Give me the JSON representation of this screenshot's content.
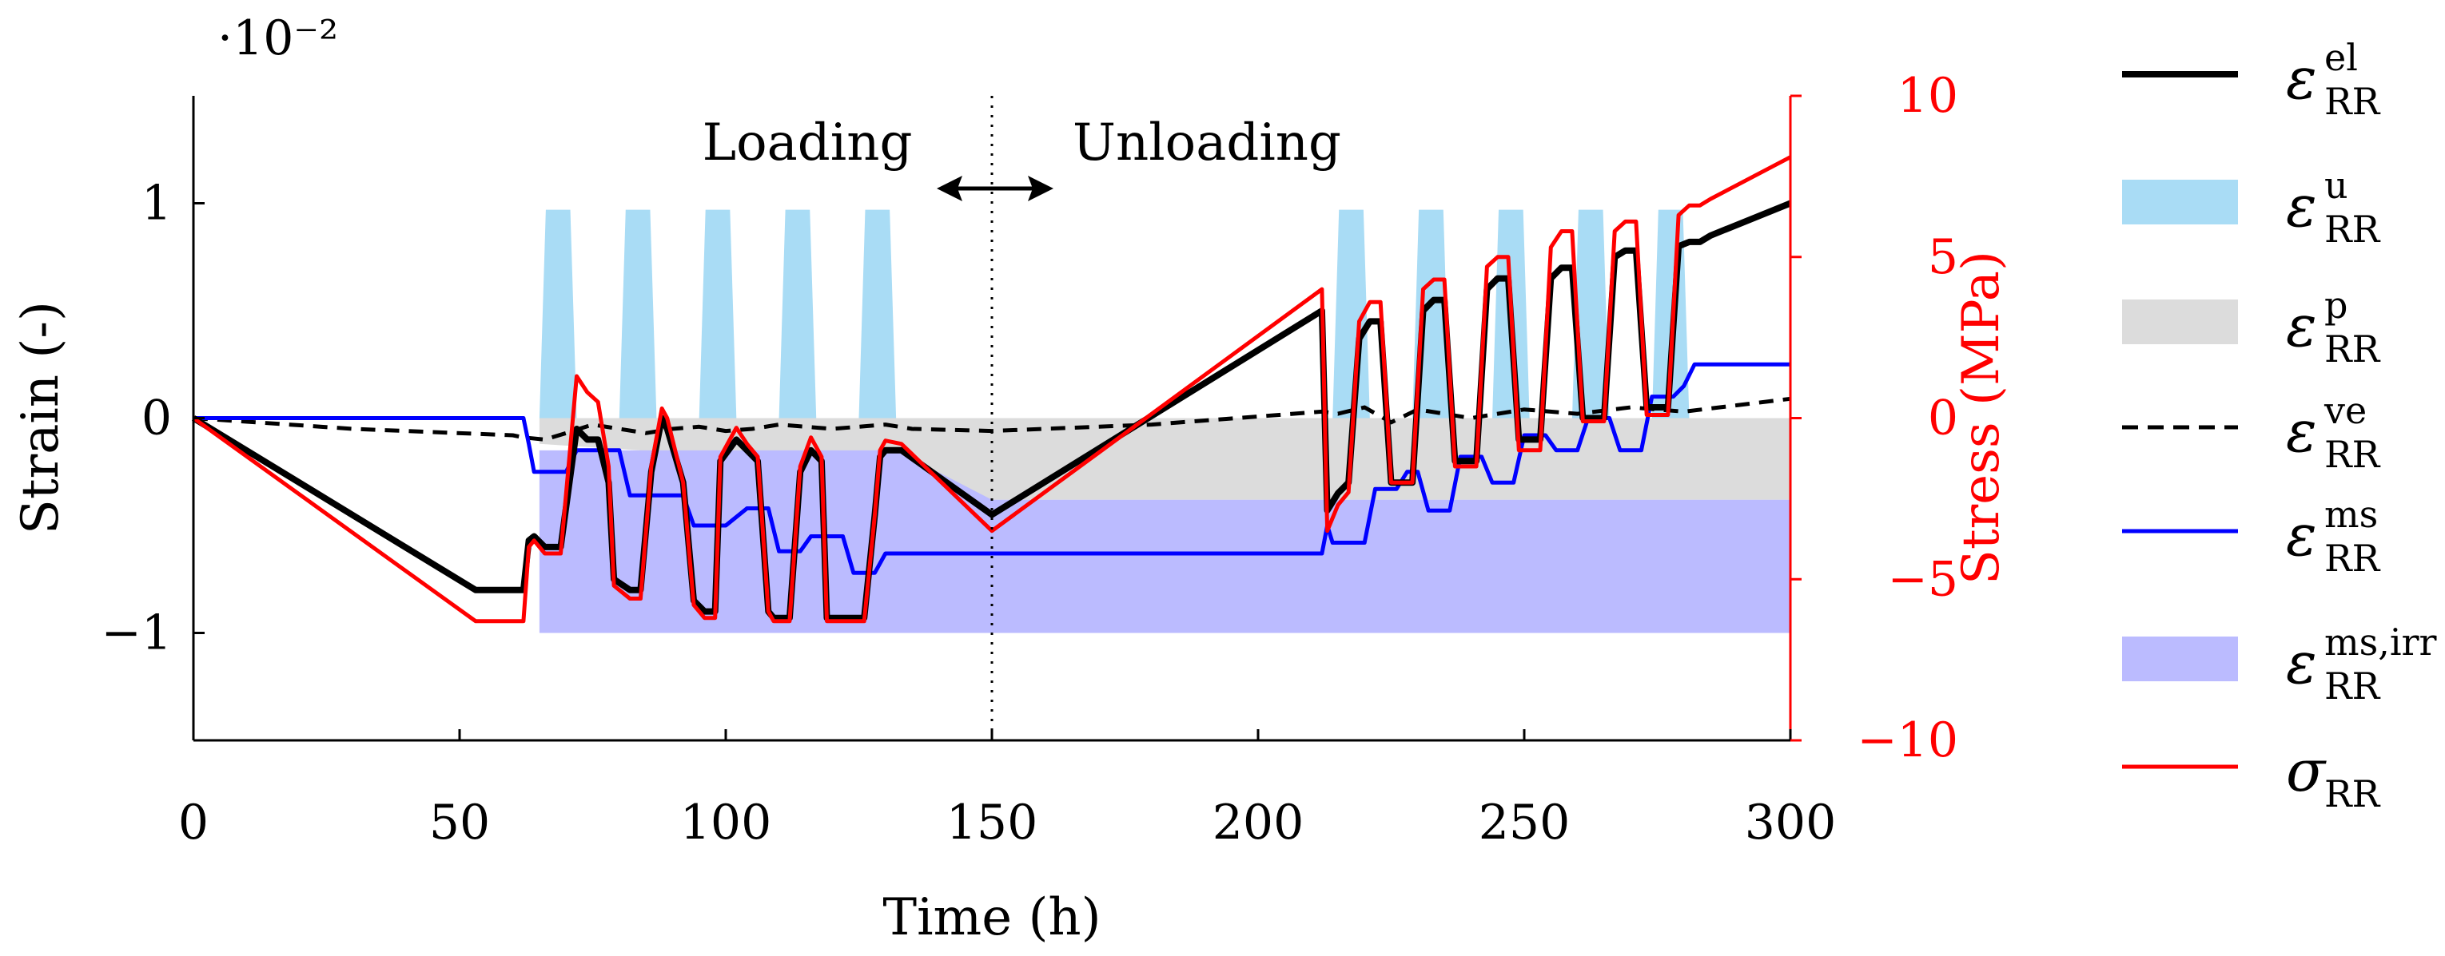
{
  "chart_data": {
    "type": "line",
    "xlabel": "Time (h)",
    "ylabel": "Strain (-)",
    "y2label": "Stress (MPa)",
    "yscale_note": "·10⁻²",
    "xlim": [
      0,
      300
    ],
    "ylim": [
      -1.5,
      1.5
    ],
    "y2lim": [
      -10,
      10
    ],
    "xticks": [
      "0",
      "50",
      "100",
      "150",
      "200",
      "250",
      "300"
    ],
    "xtick_values": [
      0,
      50,
      100,
      150,
      200,
      250,
      300
    ],
    "yticks": [
      "−1",
      "0",
      "1"
    ],
    "ytick_values": [
      -1,
      0,
      1
    ],
    "y2ticks": [
      "−10",
      "−5",
      "0",
      "5",
      "10"
    ],
    "y2tick_values": [
      -10,
      -5,
      0,
      5,
      10
    ],
    "annotations": {
      "loading": "Loading",
      "unloading": "Unloading",
      "divider_x": 150
    },
    "colors": {
      "el": "#000000",
      "u": "#a9dcf5",
      "p": "#dcdcdc",
      "ve": "#000000",
      "ms": "#0000ff",
      "ms_irr": "#bbbbff",
      "sigma": "#ff0000",
      "right_axis": "#ff0000"
    },
    "legend_labels": {
      "el": {
        "base": "ε",
        "sub": "RR",
        "sup": "el"
      },
      "u": {
        "base": "ε",
        "sub": "RR",
        "sup": "u"
      },
      "p": {
        "base": "ε",
        "sub": "RR",
        "sup": "p"
      },
      "ve": {
        "base": "ε",
        "sub": "RR",
        "sup": "ve"
      },
      "ms": {
        "base": "ε",
        "sub": "RR",
        "sup": "ms"
      },
      "ms_irr": {
        "base": "ε",
        "sub": "RR",
        "sup": "ms,irr"
      },
      "sigma": {
        "base": "σ",
        "sub": "RR",
        "sup": ""
      }
    },
    "series": [
      {
        "key": "el",
        "name": "εRR^el",
        "style": "line",
        "axis": "left",
        "x": [
          0,
          53,
          62,
          63,
          64,
          66,
          68,
          69,
          72,
          74,
          76,
          78,
          79,
          82,
          84,
          86,
          88,
          89,
          92,
          94,
          96,
          98,
          99,
          102,
          104,
          106,
          108,
          109,
          112,
          114,
          116,
          118,
          119,
          122,
          124,
          126,
          128,
          129,
          130,
          133,
          150,
          212,
          213,
          215,
          217,
          219,
          221,
          223,
          225,
          227,
          229,
          231,
          233,
          235,
          237,
          239,
          241,
          243,
          245,
          247,
          249,
          251,
          253,
          255,
          257,
          259,
          261,
          263,
          265,
          267,
          269,
          271,
          273,
          275,
          277,
          279,
          281,
          283,
          285,
          300
        ],
        "y": [
          0,
          -0.8,
          -0.8,
          -0.57,
          -0.55,
          -0.6,
          -0.6,
          -0.6,
          -0.05,
          -0.1,
          -0.1,
          -0.3,
          -0.75,
          -0.8,
          -0.8,
          -0.25,
          0,
          -0.05,
          -0.3,
          -0.85,
          -0.9,
          -0.9,
          -0.2,
          -0.1,
          -0.15,
          -0.2,
          -0.9,
          -0.93,
          -0.93,
          -0.25,
          -0.15,
          -0.2,
          -0.93,
          -0.93,
          -0.93,
          -0.93,
          -0.45,
          -0.18,
          -0.15,
          -0.15,
          -0.45,
          0.5,
          -0.43,
          -0.35,
          -0.3,
          0.37,
          0.45,
          0.45,
          -0.3,
          -0.3,
          -0.3,
          0.5,
          0.55,
          0.55,
          -0.2,
          -0.2,
          -0.2,
          0.6,
          0.65,
          0.65,
          -0.1,
          -0.1,
          -0.1,
          0.65,
          0.7,
          0.7,
          0,
          0,
          0,
          0.75,
          0.78,
          0.78,
          0.05,
          0.05,
          0.05,
          0.8,
          0.82,
          0.82,
          0.85,
          1.0
        ]
      },
      {
        "key": "sigma",
        "name": "σRR",
        "style": "line",
        "axis": "right",
        "x": [
          0,
          53,
          62,
          63,
          64,
          66,
          68,
          69,
          72,
          74,
          76,
          78,
          79,
          82,
          84,
          86,
          88,
          89,
          92,
          94,
          96,
          98,
          99,
          102,
          104,
          106,
          108,
          109,
          112,
          114,
          116,
          118,
          119,
          122,
          124,
          126,
          128,
          129,
          130,
          133,
          150,
          212,
          213,
          215,
          217,
          219,
          221,
          223,
          225,
          227,
          229,
          231,
          233,
          235,
          237,
          239,
          241,
          243,
          245,
          247,
          249,
          251,
          253,
          255,
          257,
          259,
          261,
          263,
          265,
          267,
          269,
          271,
          273,
          275,
          277,
          279,
          281,
          283,
          285,
          300
        ],
        "y": [
          0,
          -6.3,
          -6.3,
          -4.0,
          -3.8,
          -4.2,
          -4.2,
          -4.2,
          1.3,
          0.8,
          0.5,
          -1.5,
          -5.2,
          -5.6,
          -5.6,
          -1.5,
          0.3,
          0,
          -2,
          -5.8,
          -6.2,
          -6.2,
          -1.2,
          -0.3,
          -0.8,
          -1.2,
          -6.0,
          -6.3,
          -6.3,
          -1.5,
          -0.6,
          -1.2,
          -6.3,
          -6.3,
          -6.3,
          -6.3,
          -3.0,
          -1.0,
          -0.7,
          -0.8,
          -3.5,
          4.0,
          -3.5,
          -2.7,
          -2.3,
          3.0,
          3.6,
          3.6,
          -2.0,
          -2.0,
          -2.0,
          4.0,
          4.3,
          4.3,
          -1.5,
          -1.5,
          -1.5,
          4.7,
          5.0,
          5.0,
          -1.0,
          -1.0,
          -1.0,
          5.3,
          5.8,
          5.8,
          -0.1,
          -0.1,
          -0.1,
          5.8,
          6.1,
          6.1,
          0.1,
          0.1,
          0.1,
          6.3,
          6.6,
          6.6,
          6.8,
          8.1
        ]
      },
      {
        "key": "ve",
        "name": "εRR^ve",
        "style": "dashed",
        "axis": "left",
        "x": [
          0,
          30,
          60,
          62,
          66,
          70,
          75,
          80,
          85,
          90,
          95,
          100,
          105,
          110,
          115,
          120,
          125,
          130,
          135,
          150,
          180,
          212,
          215,
          220,
          225,
          230,
          240,
          250,
          260,
          270,
          280,
          290,
          300
        ],
        "y": [
          0,
          -0.05,
          -0.08,
          -0.09,
          -0.1,
          -0.07,
          -0.03,
          -0.05,
          -0.07,
          -0.05,
          -0.04,
          -0.06,
          -0.05,
          -0.03,
          -0.04,
          -0.05,
          -0.04,
          -0.03,
          -0.05,
          -0.06,
          -0.03,
          0.03,
          0.02,
          0.05,
          -0.02,
          0.04,
          0.0,
          0.04,
          0.02,
          0.05,
          0.03,
          0.06,
          0.09
        ]
      },
      {
        "key": "ms",
        "name": "εRR^ms",
        "style": "line",
        "axis": "left",
        "x": [
          0,
          62,
          63,
          64,
          66,
          70,
          72,
          74,
          80,
          82,
          84,
          86,
          89,
          92,
          94,
          96,
          100,
          104,
          106,
          108,
          110,
          112,
          114,
          116,
          120,
          122,
          124,
          126,
          128,
          130,
          132,
          150,
          212,
          213,
          214,
          215,
          218,
          220,
          222,
          224,
          226,
          228,
          230,
          232,
          234,
          236,
          238,
          240,
          242,
          244,
          246,
          248,
          250,
          252,
          254,
          256,
          258,
          260,
          262,
          264,
          266,
          268,
          270,
          272,
          274,
          276,
          278,
          280,
          282,
          284,
          286,
          290,
          300
        ],
        "y": [
          0,
          0,
          -0.12,
          -0.25,
          -0.25,
          -0.25,
          -0.15,
          -0.15,
          -0.15,
          -0.36,
          -0.36,
          -0.36,
          -0.36,
          -0.36,
          -0.5,
          -0.5,
          -0.5,
          -0.42,
          -0.42,
          -0.42,
          -0.62,
          -0.62,
          -0.62,
          -0.55,
          -0.55,
          -0.55,
          -0.72,
          -0.72,
          -0.72,
          -0.63,
          -0.63,
          -0.63,
          -0.63,
          -0.5,
          -0.58,
          -0.58,
          -0.58,
          -0.58,
          -0.33,
          -0.33,
          -0.33,
          -0.25,
          -0.25,
          -0.43,
          -0.43,
          -0.43,
          -0.18,
          -0.18,
          -0.18,
          -0.3,
          -0.3,
          -0.3,
          -0.08,
          -0.08,
          -0.08,
          -0.15,
          -0.15,
          -0.15,
          0.0,
          0.0,
          0.0,
          -0.15,
          -0.15,
          -0.15,
          0.1,
          0.1,
          0.1,
          0.15,
          0.25,
          0.25,
          0.25,
          0.25,
          0.25
        ]
      },
      {
        "key": "u",
        "name": "εRR^u",
        "style": "fill",
        "axis": "left",
        "pulses": [
          {
            "start": 65,
            "end": 72,
            "lo": 0,
            "hi": 0.97
          },
          {
            "start": 80,
            "end": 87,
            "lo": 0,
            "hi": 0.97
          },
          {
            "start": 95,
            "end": 102,
            "lo": 0,
            "hi": 0.97
          },
          {
            "start": 110,
            "end": 117,
            "lo": 0,
            "hi": 0.97
          },
          {
            "start": 125,
            "end": 132,
            "lo": 0,
            "hi": 0.97
          },
          {
            "start": 214,
            "end": 221,
            "lo": 0,
            "hi": 0.97
          },
          {
            "start": 229,
            "end": 236,
            "lo": 0,
            "hi": 0.97
          },
          {
            "start": 244,
            "end": 251,
            "lo": 0,
            "hi": 0.97
          },
          {
            "start": 259,
            "end": 266,
            "lo": 0,
            "hi": 0.97
          },
          {
            "start": 274,
            "end": 281,
            "lo": 0,
            "hi": 0.97
          }
        ]
      },
      {
        "key": "p",
        "name": "εRR^p",
        "style": "fill",
        "axis": "left",
        "upper": 0,
        "x": [
          65,
          90,
          110,
          130,
          150,
          300
        ],
        "lower": [
          -0.12,
          -0.16,
          -0.2,
          -0.3,
          -0.38,
          -0.38
        ]
      },
      {
        "key": "ms_irr",
        "name": "εRR^ms,irr",
        "style": "fill",
        "axis": "left",
        "x": [
          65,
          132,
          150,
          300
        ],
        "upper": [
          -0.15,
          -0.15,
          -0.38,
          -0.38
        ],
        "lower": -1.0
      }
    ]
  }
}
